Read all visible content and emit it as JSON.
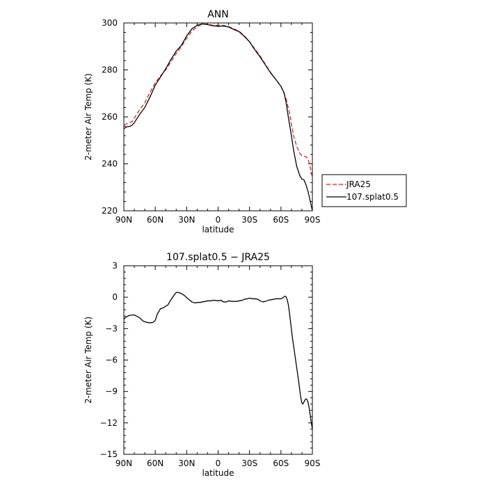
{
  "chart_data": [
    {
      "type": "line",
      "title": "ANN",
      "xlabel": "latitude",
      "ylabel": "2-meter Air Temp (K)",
      "xlim": [
        90,
        -90
      ],
      "ylim": [
        220,
        300
      ],
      "xticks": [
        90,
        60,
        30,
        0,
        -30,
        -60,
        -90
      ],
      "xtick_labels": [
        "90N",
        "60N",
        "30N",
        "0",
        "30S",
        "60S",
        "90S"
      ],
      "yticks": [
        220,
        240,
        260,
        280,
        300
      ],
      "ytick_labels": [
        "220",
        "240",
        "260",
        "280",
        "300"
      ],
      "grid": false,
      "legend_placement": "outside-right",
      "series": [
        {
          "name": "JRA25",
          "color": "#dd2222",
          "dash": "dashed",
          "x": [
            90,
            85,
            82,
            80,
            75,
            70,
            65,
            60,
            55,
            50,
            45,
            40,
            35,
            30,
            25,
            20,
            15,
            10,
            5,
            0,
            -5,
            -10,
            -15,
            -20,
            -25,
            -30,
            -35,
            -40,
            -45,
            -50,
            -55,
            -60,
            -63,
            -65,
            -68,
            -70,
            -72,
            -75,
            -78,
            -80,
            -82,
            -84,
            -86,
            -88,
            -90
          ],
          "y": [
            256.5,
            257.5,
            258,
            259.5,
            263,
            266,
            270.5,
            274.5,
            277.5,
            280,
            283.5,
            287,
            290,
            293.5,
            296.5,
            298.5,
            299.5,
            299.5,
            299,
            299,
            299,
            298.5,
            297.5,
            296.5,
            294.5,
            292,
            289,
            286,
            282.5,
            279,
            276,
            273,
            270,
            267.5,
            262,
            257,
            252,
            247.5,
            244.5,
            243.5,
            243.3,
            243,
            242,
            238.5,
            234
          ]
        },
        {
          "name": "107.splat0.5",
          "color": "#000000",
          "dash": "solid",
          "x": [
            90,
            87,
            84,
            82,
            80,
            75,
            70,
            65,
            60,
            55,
            50,
            45,
            40,
            35,
            30,
            25,
            20,
            15,
            10,
            5,
            0,
            -5,
            -10,
            -15,
            -20,
            -25,
            -30,
            -35,
            -40,
            -45,
            -50,
            -55,
            -60,
            -63,
            -65,
            -67,
            -70,
            -72,
            -75,
            -78,
            -80,
            -82,
            -84,
            -86,
            -88,
            -90
          ],
          "y": [
            255,
            255.8,
            256,
            256.5,
            257.5,
            261,
            264,
            268.5,
            273.5,
            277,
            280.5,
            284.5,
            288,
            290.5,
            294.5,
            297.5,
            299,
            299.6,
            299.3,
            298.8,
            298.6,
            298.7,
            298.3,
            297.2,
            296.3,
            294.3,
            292,
            288.6,
            285.6,
            282.2,
            278.8,
            276,
            273,
            270.2,
            266,
            260,
            252,
            246,
            239,
            235,
            233.5,
            233.2,
            231,
            228,
            224,
            220
          ]
        }
      ]
    },
    {
      "type": "line",
      "title": "107.splat0.5 − JRA25",
      "xlabel": "latitude",
      "ylabel": "2-meter Air Temp (K)",
      "xlim": [
        90,
        -90
      ],
      "ylim": [
        -15,
        3
      ],
      "xticks": [
        90,
        60,
        30,
        0,
        -30,
        -60,
        -90
      ],
      "xtick_labels": [
        "90N",
        "60N",
        "30N",
        "0",
        "30S",
        "60S",
        "90S"
      ],
      "yticks": [
        -15,
        -12,
        -9,
        -6,
        -3,
        0,
        3
      ],
      "ytick_labels": [
        "−15",
        "−12",
        "−9",
        "−6",
        "−3",
        "0",
        "3"
      ],
      "grid": false,
      "series": [
        {
          "color": "#000000",
          "dash": "solid",
          "x": [
            90,
            88,
            85,
            82,
            80,
            78,
            76,
            74,
            72,
            70,
            68,
            65,
            62,
            60,
            58,
            55,
            52,
            50,
            48,
            46,
            44,
            42,
            40,
            38,
            35,
            32,
            30,
            27,
            25,
            22,
            20,
            17,
            15,
            12,
            10,
            7,
            5,
            3,
            0,
            -3,
            -5,
            -8,
            -10,
            -13,
            -15,
            -18,
            -20,
            -23,
            -25,
            -28,
            -30,
            -33,
            -35,
            -38,
            -40,
            -43,
            -45,
            -48,
            -50,
            -53,
            -55,
            -58,
            -60,
            -61,
            -62,
            -63,
            -64,
            -65,
            -66,
            -67,
            -68,
            -69,
            -70,
            -71,
            -72,
            -73,
            -74,
            -75,
            -76,
            -77,
            -78,
            -79,
            -80,
            -81,
            -82,
            -83,
            -84,
            -85,
            -86,
            -87,
            -88,
            -89,
            -90
          ],
          "y": [
            -2.1,
            -1.9,
            -1.75,
            -1.7,
            -1.7,
            -1.8,
            -1.9,
            -2.05,
            -2.25,
            -2.35,
            -2.4,
            -2.45,
            -2.4,
            -2.2,
            -1.6,
            -1.1,
            -1.0,
            -0.85,
            -0.75,
            -0.4,
            -0.1,
            0.2,
            0.45,
            0.45,
            0.35,
            0.15,
            -0.05,
            -0.3,
            -0.45,
            -0.55,
            -0.5,
            -0.5,
            -0.45,
            -0.4,
            -0.35,
            -0.35,
            -0.3,
            -0.3,
            -0.35,
            -0.3,
            -0.45,
            -0.45,
            -0.35,
            -0.4,
            -0.4,
            -0.4,
            -0.35,
            -0.3,
            -0.2,
            -0.15,
            -0.1,
            -0.15,
            -0.15,
            -0.2,
            -0.35,
            -0.45,
            -0.4,
            -0.3,
            -0.25,
            -0.2,
            -0.15,
            -0.15,
            -0.15,
            -0.1,
            -0.05,
            0.05,
            0.1,
            0.0,
            -0.25,
            -0.7,
            -1.4,
            -2.2,
            -3.1,
            -3.9,
            -4.6,
            -5.3,
            -6.0,
            -6.7,
            -7.4,
            -8.1,
            -8.9,
            -9.6,
            -10.1,
            -10.2,
            -10.0,
            -9.8,
            -9.7,
            -9.8,
            -10.1,
            -10.6,
            -11.3,
            -12.0,
            -12.6
          ]
        }
      ]
    }
  ]
}
